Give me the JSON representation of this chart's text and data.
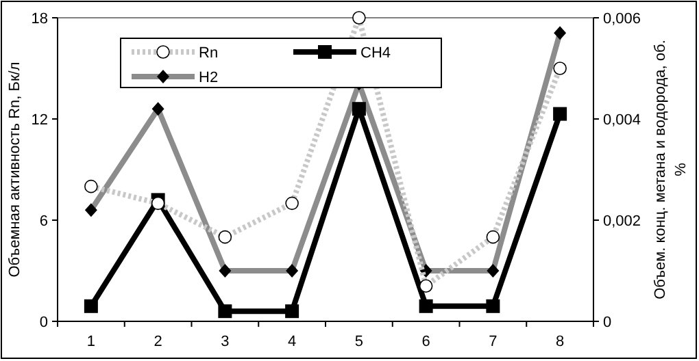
{
  "chart_data": {
    "type": "line",
    "categories": [
      "1",
      "2",
      "3",
      "4",
      "5",
      "6",
      "7",
      "8"
    ],
    "ylabel": "Объемная активность Rn, Бк/л",
    "y2label": "Объем. конц. метана и водорода, об. %",
    "ylim": [
      0,
      18
    ],
    "yticks": [
      0,
      6,
      12,
      18
    ],
    "y2lim": [
      0,
      0.006
    ],
    "y2ticks": [
      {
        "value": 0,
        "label": "0"
      },
      {
        "value": 0.002,
        "label": "0,002"
      },
      {
        "value": 0.004,
        "label": "0,004"
      },
      {
        "value": 0.006,
        "label": "0,006"
      }
    ],
    "legend": "top left",
    "grid": false,
    "series": [
      {
        "name": "Rn",
        "color": "#c8c8c8",
        "marker": "circle",
        "line_style": "dotted",
        "values": [
          8.0,
          7.0,
          5.0,
          7.0,
          18.0,
          2.1,
          5.0,
          15.0
        ]
      },
      {
        "name": "CH4",
        "color": "#000000",
        "marker": "square",
        "line_style": "solid",
        "axis": "y2",
        "values": [
          0.0003,
          0.0024,
          0.0002,
          0.0002,
          0.0042,
          0.0003,
          0.0003,
          0.0041
        ]
      },
      {
        "name": "H2",
        "color": "#8c8c8c",
        "marker": "diamond",
        "line_style": "solid",
        "axis": "y2",
        "values": [
          0.0022,
          0.0042,
          0.001,
          0.001,
          0.0047,
          0.001,
          0.001,
          0.0057
        ]
      }
    ]
  }
}
